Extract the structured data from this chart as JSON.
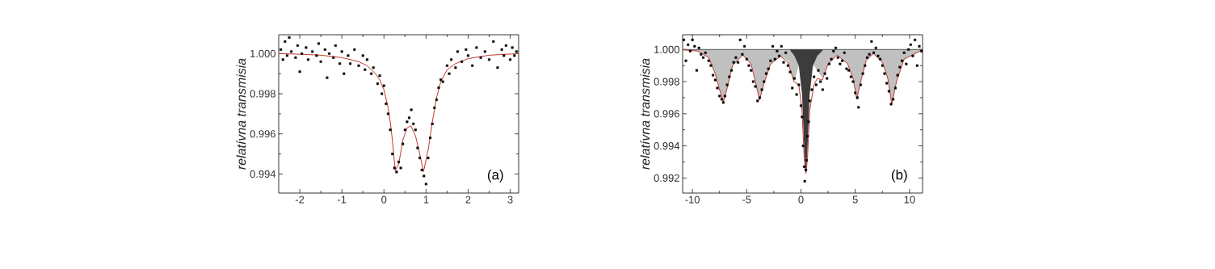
{
  "chart_data": [
    {
      "type": "scatter",
      "ylabel": "relatívna transmisia",
      "annotations": [
        "(a)"
      ],
      "xlim": [
        -2.5,
        3.2
      ],
      "ylim": [
        0.99305,
        1.00094
      ],
      "xticks": [
        -2,
        -1,
        0,
        1,
        2,
        3
      ],
      "yticks": [
        {
          "value": 0.994,
          "label": "0.994"
        },
        {
          "value": 0.996,
          "label": "0.996"
        },
        {
          "value": 0.998,
          "label": "0.998"
        },
        {
          "value": 1.0,
          "label": "1.000"
        }
      ],
      "series": [
        {
          "marker": "square",
          "color": "#000000",
          "x": [
            -2.45,
            -2.4,
            -2.35,
            -2.3,
            -2.25,
            -2.2,
            -2.1,
            -2.05,
            -2.0,
            -1.95,
            -1.85,
            -1.8,
            -1.7,
            -1.6,
            -1.55,
            -1.5,
            -1.4,
            -1.35,
            -1.3,
            -1.2,
            -1.15,
            -1.05,
            -1.0,
            -0.95,
            -0.85,
            -0.8,
            -0.7,
            -0.6,
            -0.5,
            -0.45,
            -0.4,
            -0.3,
            -0.25,
            -0.15,
            -0.1,
            -0.05,
            0.0,
            0.05,
            0.1,
            0.15,
            0.2,
            0.25,
            0.3,
            0.35,
            0.4,
            0.45,
            0.5,
            0.55,
            0.6,
            0.65,
            0.7,
            0.75,
            0.8,
            0.85,
            0.9,
            0.95,
            1.0,
            1.05,
            1.1,
            1.15,
            1.2,
            1.25,
            1.3,
            1.35,
            1.4,
            1.5,
            1.55,
            1.6,
            1.7,
            1.75,
            1.85,
            1.95,
            2.0,
            2.1,
            2.2,
            2.3,
            2.4,
            2.5,
            2.6,
            2.7,
            2.8,
            2.85,
            2.9,
            3.0,
            3.05,
            3.1,
            3.15
          ],
          "values": [
            1.0002,
            0.9997,
            1.0006,
            0.9999,
            1.0008,
            1.0001,
            0.9998,
            1.0004,
            0.9991,
            1.0,
            1.0003,
            0.9997,
            1.0001,
            0.9999,
            1.0005,
            0.9996,
            1.0002,
            0.9988,
            1.0,
            0.9998,
            1.0004,
            0.9995,
            1.0001,
            0.999,
            0.9999,
            0.9995,
            1.0002,
            0.9994,
            0.9999,
            0.9992,
            0.9997,
            0.999,
            0.9993,
            0.9985,
            0.9989,
            0.998,
            0.9984,
            0.9975,
            0.997,
            0.9962,
            0.995,
            0.9943,
            0.9941,
            0.9946,
            0.9943,
            0.9955,
            0.9962,
            0.9966,
            0.9968,
            0.9972,
            0.9965,
            0.9962,
            0.9953,
            0.9948,
            0.9942,
            0.9939,
            0.9935,
            0.9948,
            0.9958,
            0.9965,
            0.9973,
            0.9977,
            0.9983,
            0.9987,
            0.9986,
            0.9994,
            0.999,
            0.9997,
            0.9993,
            1.0001,
            0.9996,
            1.0002,
            0.9999,
            0.9994,
            1.0003,
            0.9998,
            1.0001,
            0.9997,
            1.0006,
            0.9993,
            1.0002,
            0.9999,
            1.0004,
            0.9997,
            1.0003,
            0.9999,
            1.0001
          ]
        },
        {
          "type": "line",
          "color": "#c0392b",
          "x": [
            -2.5,
            -2,
            -1.5,
            -1,
            -0.6,
            -0.4,
            -0.2,
            -0.1,
            0,
            0.1,
            0.15,
            0.2,
            0.27,
            0.35,
            0.45,
            0.55,
            0.64,
            0.75,
            0.85,
            0.94,
            1.05,
            1.15,
            1.25,
            1.35,
            1.5,
            1.7,
            2,
            2.5,
            3.2
          ],
          "values": [
            1.0,
            0.99997,
            0.99992,
            0.9998,
            0.9996,
            0.9994,
            0.999,
            0.9987,
            0.9982,
            0.9973,
            0.9966,
            0.9957,
            0.99416,
            0.9945,
            0.9957,
            0.9963,
            0.9964,
            0.9959,
            0.995,
            0.99412,
            0.9952,
            0.9966,
            0.9978,
            0.9986,
            0.9992,
            0.9995,
            0.99975,
            0.99992,
            1.0
          ]
        }
      ]
    },
    {
      "type": "scatter",
      "ylabel": "relatívna transmisia",
      "annotations": [
        "(b)"
      ],
      "xlim": [
        -10.9,
        11.2
      ],
      "ylim": [
        0.99106,
        1.00092
      ],
      "xticks": [
        -10,
        -5,
        0,
        5,
        10
      ],
      "yticks": [
        {
          "value": 0.992,
          "label": "0.992"
        },
        {
          "value": 0.994,
          "label": "0.994"
        },
        {
          "value": 0.996,
          "label": "0.996"
        },
        {
          "value": 0.998,
          "label": "0.998"
        },
        {
          "value": 1.0,
          "label": "1.000"
        }
      ],
      "ref_lines": [
        {
          "axis": "y",
          "value": 1.0,
          "color": "#303030"
        }
      ],
      "series": [
        {
          "type": "area",
          "color": "#c0c0c0",
          "x": [
            -10.9,
            -9.5,
            -8.5,
            -7.9,
            -7.5,
            -7.15,
            -6.8,
            -6.3,
            -5.36,
            -4.6,
            -4.2,
            -3.82,
            -3.4,
            -2.8,
            -1.89,
            -1.2,
            -0.65,
            -0.2,
            0.45,
            1.2,
            1.96,
            2.5,
            3.33,
            4.3,
            4.8,
            5.14,
            5.5,
            6.0,
            6.67,
            7.5,
            8.0,
            8.36,
            8.8,
            9.5,
            11.2
          ],
          "values": [
            0.99998,
            0.9999,
            0.9995,
            0.9985,
            0.9975,
            0.99673,
            0.9976,
            0.999,
            0.99966,
            0.9991,
            0.998,
            0.99686,
            0.9979,
            0.9991,
            0.99958,
            0.9993,
            0.998,
            0.999,
            null,
            0.999,
            0.99824,
            0.9991,
            0.99966,
            0.9991,
            0.9982,
            0.9969,
            0.998,
            0.9993,
            0.99975,
            0.9992,
            0.9982,
            0.99661,
            0.998,
            0.9994,
            0.99998
          ]
        },
        {
          "type": "area",
          "color": "#3c3c3c",
          "x": [
            -1.0,
            -0.6,
            -0.2,
            0.1,
            0.3,
            0.45,
            0.6,
            0.8,
            1.1,
            1.5,
            2.0
          ],
          "values": [
            0.99995,
            0.9996,
            0.999,
            0.9972,
            0.9938,
            0.99228,
            0.9938,
            0.9972,
            0.999,
            0.9996,
            0.99995
          ]
        },
        {
          "marker": "square",
          "color": "#000000",
          "x": [
            -10.8,
            -10.6,
            -10.4,
            -10.2,
            -10.0,
            -9.8,
            -9.6,
            -9.4,
            -9.2,
            -9.0,
            -8.8,
            -8.5,
            -8.3,
            -8.1,
            -7.9,
            -7.7,
            -7.5,
            -7.3,
            -7.15,
            -7.0,
            -6.8,
            -6.6,
            -6.4,
            -6.2,
            -6.0,
            -5.8,
            -5.6,
            -5.4,
            -5.2,
            -5.0,
            -4.8,
            -4.6,
            -4.4,
            -4.2,
            -4.0,
            -3.8,
            -3.6,
            -3.4,
            -3.2,
            -3.0,
            -2.8,
            -2.6,
            -2.4,
            -2.2,
            -2.0,
            -1.8,
            -1.6,
            -1.4,
            -1.2,
            -1.0,
            -0.8,
            -0.6,
            -0.4,
            -0.2,
            0.0,
            0.1,
            0.2,
            0.3,
            0.35,
            0.45,
            0.5,
            0.6,
            0.7,
            0.8,
            1.0,
            1.2,
            1.4,
            1.6,
            1.8,
            2.0,
            2.2,
            2.4,
            2.6,
            2.8,
            3.0,
            3.2,
            3.4,
            3.6,
            3.8,
            4.0,
            4.2,
            4.4,
            4.6,
            4.8,
            5.0,
            5.2,
            5.3,
            5.5,
            5.7,
            5.9,
            6.1,
            6.3,
            6.5,
            6.7,
            6.9,
            7.1,
            7.3,
            7.5,
            7.7,
            7.9,
            8.1,
            8.3,
            8.5,
            8.7,
            8.9,
            9.1,
            9.3,
            9.5,
            9.7,
            9.9,
            10.1,
            10.3,
            10.5,
            10.7,
            10.9,
            11.1
          ],
          "values": [
            1.0006,
            0.9993,
            1.0003,
            0.9999,
            1.0006,
            1.0002,
            0.9987,
            1.0001,
            0.9997,
            0.9995,
            0.9998,
            0.9993,
            0.999,
            0.9984,
            0.9981,
            0.9976,
            0.9971,
            0.9969,
            0.9967,
            0.9971,
            0.9978,
            0.9983,
            0.9987,
            0.9992,
            0.9995,
            0.9992,
            1.0006,
            0.9997,
            1.0002,
            0.9994,
            0.999,
            0.9987,
            0.998,
            0.9977,
            0.9968,
            0.997,
            0.9975,
            0.998,
            0.9985,
            0.9988,
            0.9993,
            1.0002,
            0.9994,
            0.9999,
            0.9996,
            1.0002,
            0.9992,
            0.9998,
            0.999,
            0.9986,
            0.9976,
            0.9982,
            0.9972,
            0.9978,
            0.9965,
            0.9958,
            0.994,
            0.9927,
            0.9918,
            0.9925,
            0.9931,
            0.9946,
            0.9955,
            0.9968,
            0.9975,
            0.9983,
            0.9978,
            0.9987,
            0.998,
            0.9975,
            0.9985,
            0.9982,
            0.9991,
            0.9994,
            0.9999,
            1.0001,
            0.9995,
            0.9991,
            0.9993,
            0.9998,
            0.9988,
            0.9987,
            0.9983,
            0.998,
            0.9973,
            0.997,
            0.9964,
            0.9978,
            0.9985,
            0.999,
            0.9995,
            0.9997,
            1.0005,
            0.9998,
            1.0001,
            0.9996,
            0.9994,
            0.999,
            0.9985,
            0.9979,
            0.9974,
            0.9966,
            0.9969,
            0.9976,
            0.9984,
            0.9989,
            0.9993,
            0.9998,
            0.9991,
            1.0,
            1.0003,
            0.9996,
            1.0006,
            0.999,
            1.0002,
            0.9999
          ]
        },
        {
          "type": "line",
          "color": "#c0392b",
          "x": [
            -10.9,
            -9.5,
            -8.5,
            -7.9,
            -7.5,
            -7.15,
            -6.8,
            -6.3,
            -5.36,
            -4.6,
            -4.2,
            -3.82,
            -3.4,
            -2.8,
            -1.89,
            -1.2,
            -0.65,
            -0.2,
            0.1,
            0.3,
            0.45,
            0.6,
            0.8,
            1.2,
            1.5,
            1.96,
            2.5,
            3.33,
            4.3,
            4.8,
            5.14,
            5.5,
            6.0,
            6.67,
            7.5,
            8.0,
            8.36,
            8.8,
            9.5,
            11.2
          ],
          "values": [
            0.99998,
            0.9999,
            0.9995,
            0.9985,
            0.9975,
            0.99673,
            0.9976,
            0.999,
            0.99966,
            0.9991,
            0.998,
            0.99686,
            0.9979,
            0.9991,
            0.99958,
            0.9992,
            0.998,
            0.9978,
            0.9962,
            0.9932,
            0.99228,
            0.9932,
            0.9962,
            0.9978,
            0.9982,
            0.9981,
            0.9991,
            0.99966,
            0.9991,
            0.9982,
            0.9969,
            0.998,
            0.9993,
            0.99975,
            0.9992,
            0.9982,
            0.99661,
            0.998,
            0.9994,
            0.99998
          ]
        }
      ]
    }
  ]
}
